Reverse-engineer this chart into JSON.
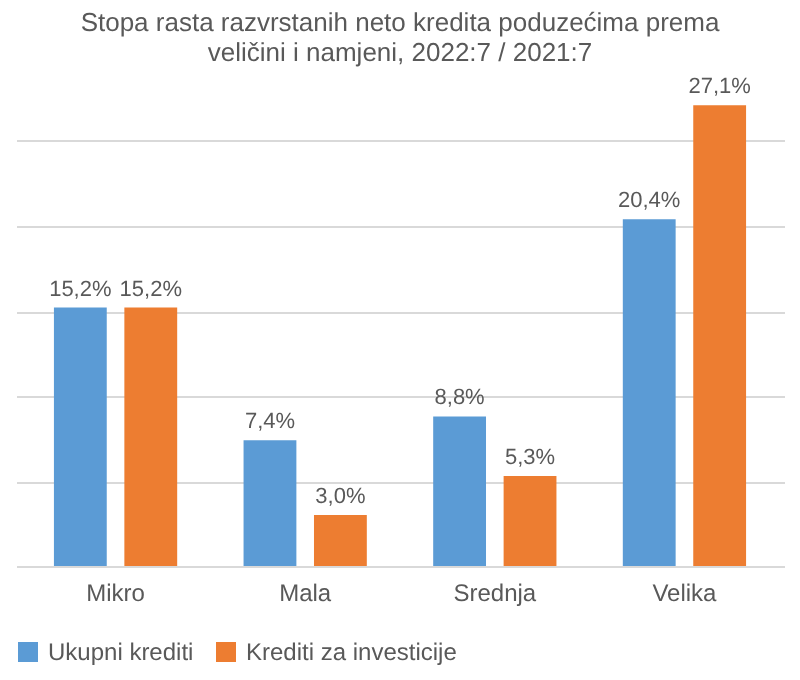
{
  "chart_data": {
    "type": "bar",
    "title": [
      "Stopa rasta razvrstanih neto kredita poduzećima prema",
      "veličini i namjeni, 2022:7 / 2021:7"
    ],
    "categories": [
      "Mikro",
      "Mala",
      "Srednja",
      "Velika"
    ],
    "series": [
      {
        "name": "Ukupni krediti",
        "color": "#5b9bd5",
        "values": [
          15.2,
          7.4,
          8.8,
          20.4
        ],
        "value_labels": [
          "15,2%",
          "7,4%",
          "8,8%",
          "20,4%"
        ]
      },
      {
        "name": "Krediti za investicije",
        "color": "#ed7d31",
        "values": [
          15.2,
          3.0,
          5.3,
          27.1
        ],
        "value_labels": [
          "15,2%",
          "3,0%",
          "5,3%",
          "27,1%"
        ]
      }
    ],
    "grid": "y",
    "tick_labels": "x",
    "legend": "bottom"
  }
}
